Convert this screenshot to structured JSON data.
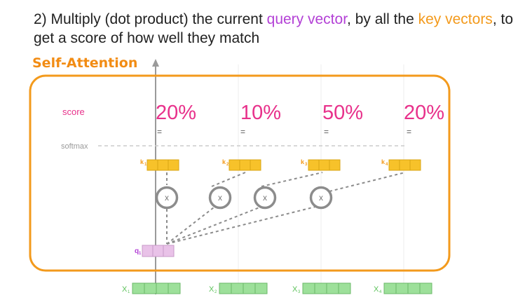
{
  "heading": {
    "step": "2) Multiply (dot product) the current ",
    "query": "query vector",
    "mid": ", by all the ",
    "key": "key vectors",
    "end": ", to get a score of how well they match"
  },
  "section_title": "Self-Attention",
  "score_label": "score",
  "softmax_label": "softmax",
  "equals": "=",
  "multiply_symbol": "x",
  "scores": [
    "20%",
    "10%",
    "50%",
    "20%"
  ],
  "keys": [
    {
      "label": "k",
      "sub": "1"
    },
    {
      "label": "k",
      "sub": "2"
    },
    {
      "label": "k",
      "sub": "3"
    },
    {
      "label": "k",
      "sub": "4"
    }
  ],
  "query_vector": {
    "label": "q",
    "sub": "1"
  },
  "inputs": [
    {
      "label": "X",
      "sub": "1"
    },
    {
      "label": "X",
      "sub": "2"
    },
    {
      "label": "X",
      "sub": "3"
    },
    {
      "label": "X",
      "sub": "4"
    }
  ],
  "colors": {
    "accent_orange": "#f39a1c",
    "score_pink": "#e8318b",
    "query_purple": "#b341d6",
    "key_yellow": "#f7c22a",
    "query_fill": "#e9c2e8",
    "input_green": "#9de09a",
    "input_label_green": "#5cc25a",
    "gray": "#8c8c8c"
  }
}
